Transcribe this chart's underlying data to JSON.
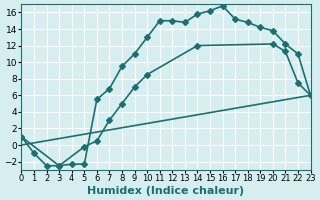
{
  "bg_color": "#d6eef0",
  "grid_color": "#ffffff",
  "line_color": "#1a7070",
  "line_width": 1.2,
  "marker": "D",
  "marker_size": 3,
  "xlabel": "Humidex (Indice chaleur)",
  "xlabel_fontsize": 8,
  "tick_fontsize": 6.5,
  "xlim": [
    0,
    23
  ],
  "ylim": [
    -3,
    17
  ],
  "yticks": [
    -2,
    0,
    2,
    4,
    6,
    8,
    10,
    12,
    14,
    16
  ],
  "xticks": [
    0,
    1,
    2,
    3,
    4,
    5,
    6,
    7,
    8,
    9,
    10,
    11,
    12,
    13,
    14,
    15,
    16,
    17,
    18,
    19,
    20,
    21,
    22,
    23
  ],
  "curve1_x": [
    0,
    1,
    2,
    3,
    4,
    5,
    6,
    7,
    8,
    9,
    10,
    11,
    12,
    13,
    14,
    15,
    16,
    17,
    18,
    19,
    20,
    21,
    22,
    23
  ],
  "curve1_y": [
    1,
    -1,
    -2.5,
    -2.5,
    -2.3,
    -2.3,
    5.5,
    6.8,
    9.5,
    11.0,
    13.0,
    15.0,
    15.0,
    14.8,
    15.8,
    16.2,
    16.8,
    15.2,
    14.8,
    14.2,
    13.8,
    12.2,
    11.0,
    6.0
  ],
  "curve2_x": [
    0,
    3,
    5,
    6,
    7,
    8,
    9,
    10,
    14,
    20,
    21,
    22,
    23
  ],
  "curve2_y": [
    1,
    -2.5,
    -0.2,
    0.5,
    3.0,
    5.0,
    7.0,
    8.5,
    12.0,
    12.2,
    11.3,
    7.5,
    6.0
  ],
  "curve3_x": [
    0,
    23
  ],
  "curve3_y": [
    0.0,
    6.0
  ]
}
